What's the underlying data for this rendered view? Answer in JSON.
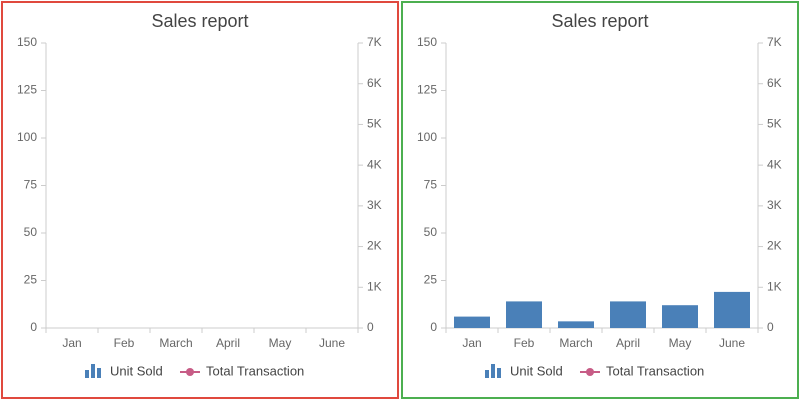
{
  "chart_data": [
    {
      "type": "bar",
      "title": "Sales report",
      "categories": [
        "Jan",
        "Feb",
        "March",
        "April",
        "May",
        "June"
      ],
      "series": [
        {
          "name": "Unit Sold",
          "color": "#4a80b8",
          "values": [
            null,
            null,
            null,
            null,
            null,
            null
          ]
        },
        {
          "name": "Total Transaction",
          "color": "#c75c86",
          "axis": "y2",
          "values": [
            null,
            null,
            null,
            null,
            null,
            null
          ]
        }
      ],
      "ylim": [
        0,
        150
      ],
      "yticks": [
        0,
        25,
        50,
        75,
        100,
        125,
        150
      ],
      "y2lim": [
        0,
        7000
      ],
      "y2ticks": [
        0,
        {
          "value": 1000,
          "label": "1K"
        },
        {
          "value": 2000,
          "label": "2K"
        },
        {
          "value": 3000,
          "label": "3K"
        },
        {
          "value": 4000,
          "label": "4K"
        },
        {
          "value": 5000,
          "label": "5K"
        },
        {
          "value": 6000,
          "label": "6K"
        },
        {
          "value": 7000,
          "label": "7K"
        }
      ],
      "border_color": "#e0493e"
    },
    {
      "type": "bar",
      "title": "Sales report",
      "categories": [
        "Jan",
        "Feb",
        "March",
        "April",
        "May",
        "June"
      ],
      "series": [
        {
          "name": "Unit Sold",
          "color": "#4a80b8",
          "values": [
            6,
            14,
            3.5,
            14,
            12,
            19
          ]
        },
        {
          "name": "Total Transaction",
          "color": "#c75c86",
          "axis": "y2",
          "values": [
            null,
            null,
            null,
            null,
            null,
            null
          ]
        }
      ],
      "ylim": [
        0,
        150
      ],
      "yticks": [
        0,
        25,
        50,
        75,
        100,
        125,
        150
      ],
      "y2lim": [
        0,
        7000
      ],
      "y2ticks": [
        0,
        {
          "value": 1000,
          "label": "1K"
        },
        {
          "value": 2000,
          "label": "2K"
        },
        {
          "value": 3000,
          "label": "3K"
        },
        {
          "value": 4000,
          "label": "4K"
        },
        {
          "value": 5000,
          "label": "5K"
        },
        {
          "value": 6000,
          "label": "6K"
        },
        {
          "value": 7000,
          "label": "7K"
        }
      ],
      "border_color": "#4caf50"
    }
  ]
}
